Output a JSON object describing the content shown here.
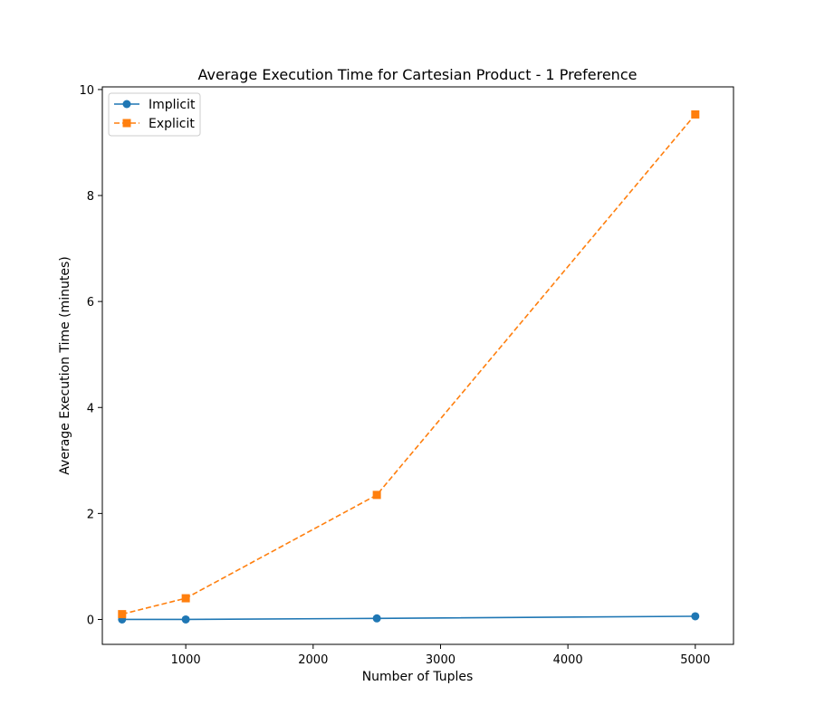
{
  "chart_data": {
    "type": "line",
    "title": "Average Execution Time for Cartesian Product - 1 Preference",
    "xlabel": "Number of Tuples",
    "ylabel": "Average Execution Time (minutes)",
    "xlim": [
      345,
      5300
    ],
    "ylim": [
      -0.47,
      10.05
    ],
    "xticks": [
      1000,
      2000,
      3000,
      4000,
      5000
    ],
    "yticks": [
      0,
      2,
      4,
      6,
      8,
      10
    ],
    "grid": false,
    "legend_position": "top-left",
    "x": [
      500,
      1000,
      2500,
      5000
    ],
    "series": [
      {
        "name": "Implicit",
        "values": [
          0.0,
          0.0,
          0.02,
          0.06
        ],
        "color": "#1f77b4",
        "marker": "circle",
        "line_style": "solid"
      },
      {
        "name": "Explicit",
        "values": [
          0.1,
          0.4,
          2.35,
          9.53
        ],
        "color": "#ff7f0e",
        "marker": "square",
        "line_style": "dashed"
      }
    ]
  }
}
